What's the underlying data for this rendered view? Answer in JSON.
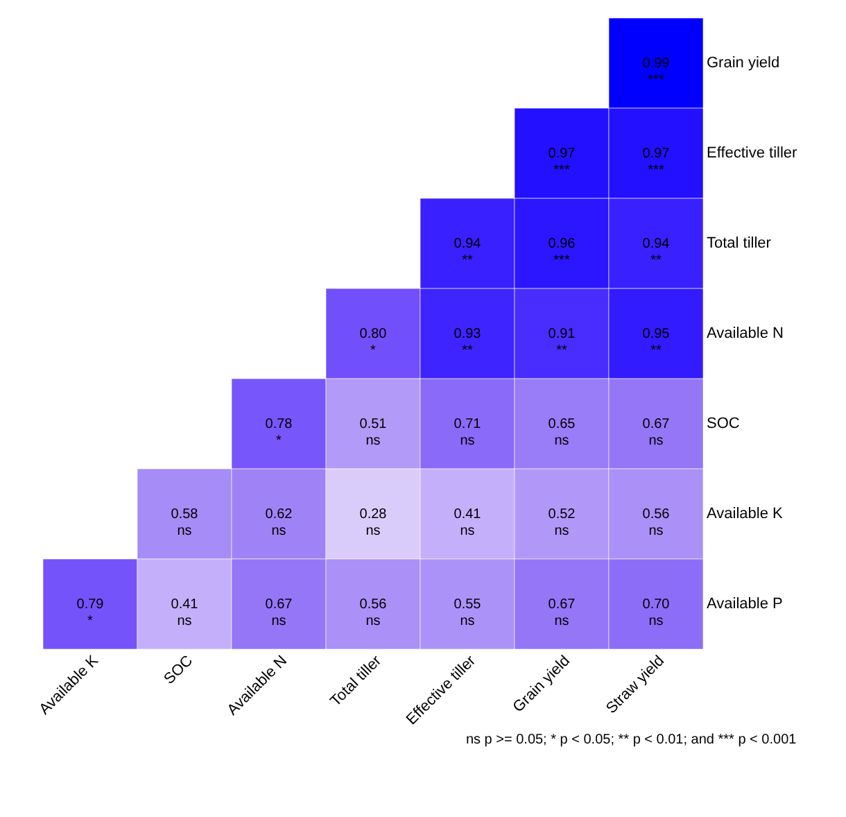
{
  "chart_data": {
    "type": "heatmap",
    "categories": [
      "Available K",
      "SOC",
      "Available N",
      "Total tiller",
      "Effective tiller",
      "Grain yield",
      "Straw yield"
    ],
    "y_categories": [
      "Grain yield",
      "Effective tiller",
      "Total tiller",
      "Available N",
      "SOC",
      "Available K",
      "Available P"
    ],
    "cells": [
      [
        null,
        null,
        null,
        null,
        null,
        null,
        0.99
      ],
      [
        null,
        null,
        null,
        null,
        null,
        0.97,
        0.97
      ],
      [
        null,
        null,
        null,
        null,
        0.94,
        0.96,
        0.94
      ],
      [
        null,
        null,
        null,
        0.8,
        0.93,
        0.91,
        0.95
      ],
      [
        null,
        null,
        0.78,
        0.51,
        0.71,
        0.65,
        0.67
      ],
      [
        null,
        0.58,
        0.62,
        0.28,
        0.41,
        0.52,
        0.56
      ],
      [
        0.79,
        0.41,
        0.67,
        0.56,
        0.55,
        0.67,
        0.7
      ]
    ],
    "cell_labels": [
      [
        null,
        null,
        null,
        null,
        null,
        null,
        "0.99\n***"
      ],
      [
        null,
        null,
        null,
        null,
        null,
        "0.97\n***",
        "0.97\n***"
      ],
      [
        null,
        null,
        null,
        null,
        "0.94\n**",
        "0.96\n***",
        "0.94\n**"
      ],
      [
        null,
        null,
        null,
        "0.80\n*",
        "0.93\n**",
        "0.91\n**",
        "0.95\n**"
      ],
      [
        null,
        null,
        "0.78\n*",
        "0.51\nns",
        "0.71\nns",
        "0.65\nns",
        "0.67\nns"
      ],
      [
        null,
        "0.58\nns",
        "0.62\nns",
        "0.28\nns",
        "0.41\nns",
        "0.52\nns",
        "0.56\nns"
      ],
      [
        "0.79\n*",
        "0.41\nns",
        "0.67\nns",
        "0.56\nns",
        "0.55\nns",
        "0.67\nns",
        "0.70\nns"
      ]
    ],
    "colors": [
      "#d9ccfb",
      "#9c80f6",
      "#0000ff"
    ],
    "annotations": [
      "ns p >= 0.05; * p < 0.05; ** p < 0.01; and *** p < 0.001"
    ]
  }
}
